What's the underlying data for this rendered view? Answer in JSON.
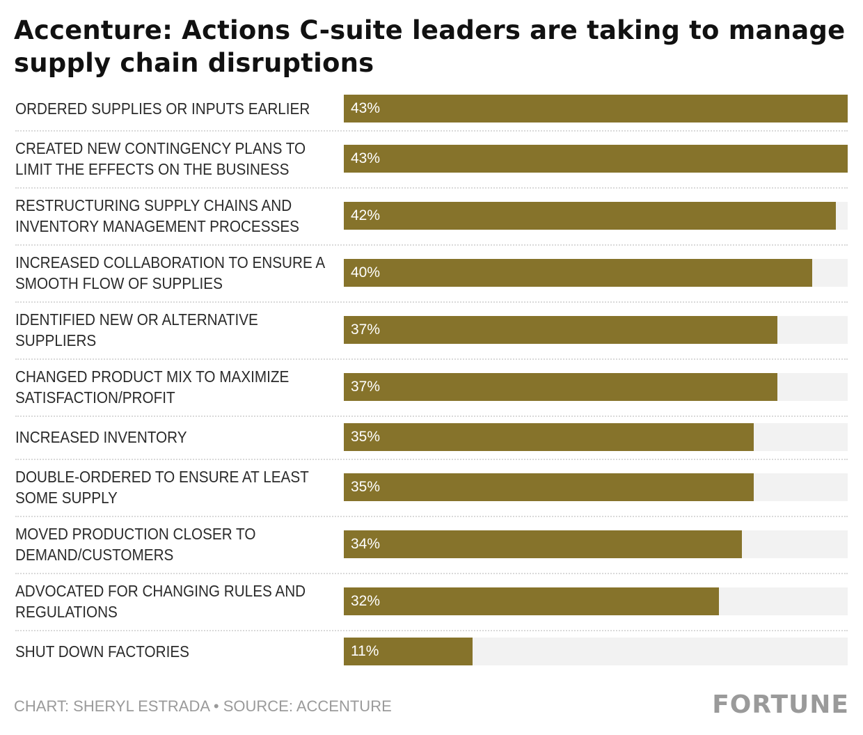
{
  "title": "Accenture: Actions C-suite leaders are taking to manage supply chain disruptions",
  "chart_data": {
    "type": "bar",
    "orientation": "horizontal",
    "categories": [
      "ORDERED SUPPLIES OR INPUTS EARLIER",
      "CREATED NEW CONTINGENCY PLANS TO LIMIT THE EFFECTS ON THE BUSINESS",
      "RESTRUCTURING SUPPLY CHAINS AND INVENTORY MANAGEMENT PROCESSES",
      "INCREASED COLLABORATION TO ENSURE A SMOOTH FLOW OF SUPPLIES",
      "IDENTIFIED NEW OR ALTERNATIVE SUPPLIERS",
      "CHANGED PRODUCT MIX TO MAXIMIZE SATISFACTION/PROFIT",
      "INCREASED INVENTORY",
      "DOUBLE-ORDERED TO ENSURE AT LEAST SOME SUPPLY",
      "MOVED PRODUCTION CLOSER TO DEMAND/CUSTOMERS",
      "ADVOCATED FOR CHANGING RULES AND REGULATIONS",
      "SHUT DOWN FACTORIES"
    ],
    "values": [
      43,
      43,
      42,
      40,
      37,
      37,
      35,
      35,
      34,
      32,
      11
    ],
    "value_labels": [
      "43%",
      "43%",
      "42%",
      "40%",
      "37%",
      "37%",
      "35%",
      "35%",
      "34%",
      "32%",
      "11%"
    ],
    "xlim": [
      0,
      43
    ],
    "bar_color": "#86732b",
    "track_color": "#f2f2f2"
  },
  "footer": {
    "credit": "CHART: SHERYL ESTRADA • SOURCE: ACCENTURE",
    "logo": "FORTUNE"
  }
}
